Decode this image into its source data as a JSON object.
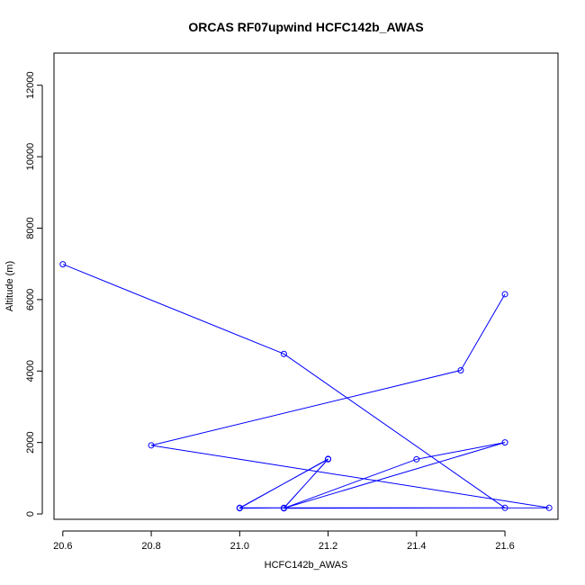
{
  "chart_data": {
    "type": "line",
    "title": "ORCAS RF07upwind HCFC142b_AWAS",
    "xlabel": "HCFC142b_AWAS",
    "ylabel": "Altitude (m)",
    "xlim": [
      20.58,
      21.72
    ],
    "ylim": [
      -150,
      12900
    ],
    "x_ticks": [
      20.6,
      20.8,
      21.0,
      21.2,
      21.4,
      21.6
    ],
    "x_tick_labels": [
      "20.6",
      "20.8",
      "21.0",
      "21.2",
      "21.4",
      "21.6"
    ],
    "y_ticks": [
      0,
      2000,
      4000,
      6000,
      8000,
      10000,
      12000
    ],
    "y_tick_labels": [
      "0",
      "2000",
      "4000",
      "6000",
      "8000",
      "10000",
      "12000"
    ],
    "grid": false,
    "series": [
      {
        "color": "#0000ff",
        "x": [
          21.6,
          21.5,
          20.8,
          21.7,
          21.1,
          21.6,
          21.4,
          21.1,
          21.2,
          21.0,
          21.1,
          21.2,
          21.0,
          21.6,
          21.1,
          20.6
        ],
        "y": [
          6150,
          4020,
          1920,
          170,
          160,
          2000,
          1530,
          160,
          1540,
          160,
          170,
          1530,
          170,
          170,
          4480,
          6990
        ]
      }
    ]
  }
}
